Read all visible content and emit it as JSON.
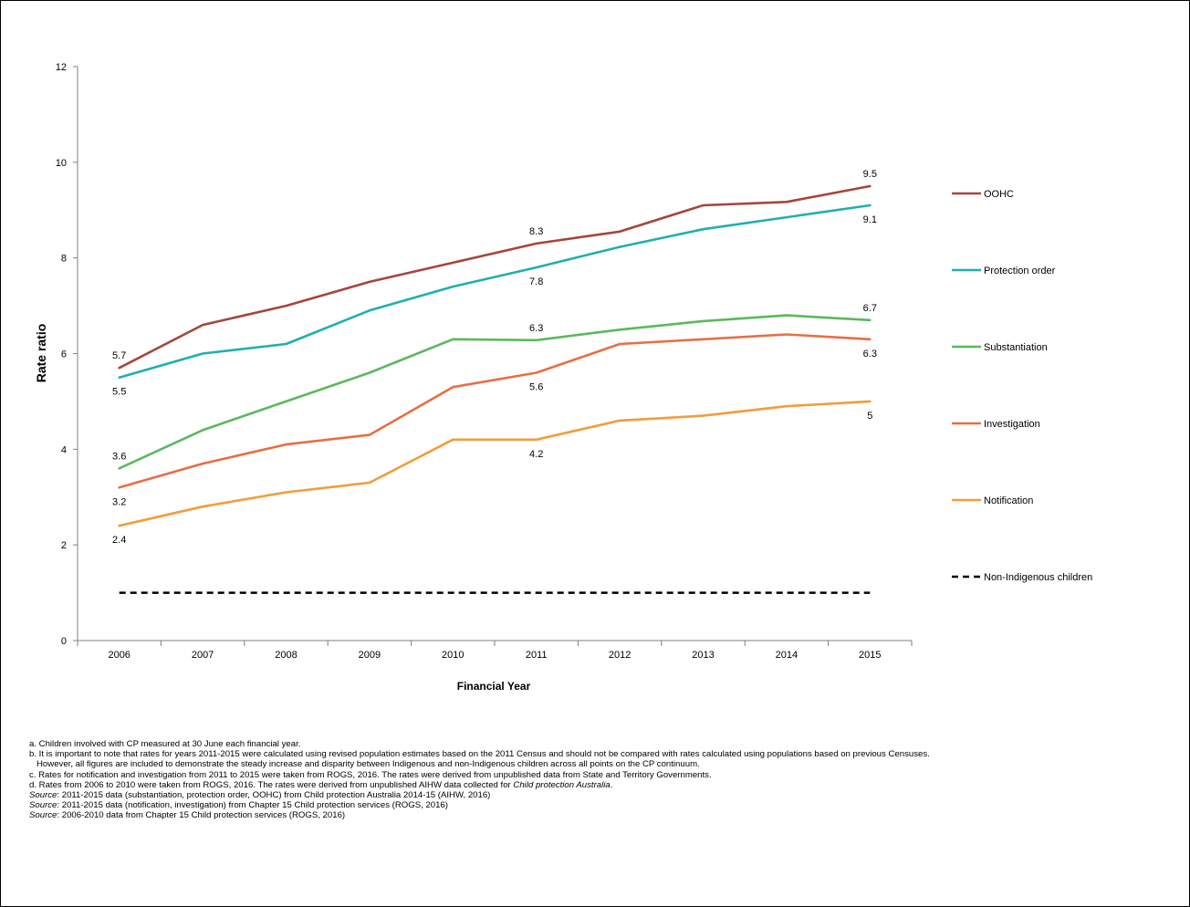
{
  "chart_data": {
    "type": "line",
    "xlabel": "Financial Year",
    "ylabel": "Rate ratio",
    "categories": [
      "2006",
      "2007",
      "2008",
      "2009",
      "2010",
      "2011",
      "2012",
      "2013",
      "2014",
      "2015"
    ],
    "ylim": [
      0,
      12
    ],
    "yticks": [
      "0",
      "2",
      "4",
      "6",
      "8",
      "10",
      "12"
    ],
    "grid": false,
    "legend_position": "right",
    "series": [
      {
        "name": "OOHC",
        "color": "#A5463A",
        "dashed": false,
        "values": [
          5.7,
          6.6,
          7.0,
          7.5,
          7.9,
          8.3,
          8.55,
          9.1,
          9.17,
          9.5
        ],
        "labels": [
          {
            "i": 0,
            "text": "5.7",
            "pos": "above"
          },
          {
            "i": 5,
            "text": "8.3",
            "pos": "above"
          },
          {
            "i": 9,
            "text": "9.5",
            "pos": "above"
          }
        ]
      },
      {
        "name": "Protection order",
        "color": "#1FAFB0",
        "dashed": false,
        "values": [
          5.5,
          6.0,
          6.2,
          6.9,
          7.4,
          7.8,
          8.23,
          8.6,
          8.85,
          9.1
        ],
        "labels": [
          {
            "i": 0,
            "text": "5.5",
            "pos": "below"
          },
          {
            "i": 5,
            "text": "7.8",
            "pos": "below"
          },
          {
            "i": 9,
            "text": "9.1",
            "pos": "below"
          }
        ]
      },
      {
        "name": "Substantiation",
        "color": "#5CB85C",
        "dashed": false,
        "values": [
          3.6,
          4.4,
          5.0,
          5.6,
          6.3,
          6.28,
          6.5,
          6.68,
          6.8,
          6.7
        ],
        "labels": [
          {
            "i": 0,
            "text": "3.6",
            "pos": "above"
          },
          {
            "i": 5,
            "text": "6.3",
            "pos": "above"
          },
          {
            "i": 9,
            "text": "6.7",
            "pos": "above"
          }
        ]
      },
      {
        "name": "Investigation",
        "color": "#E86E42",
        "dashed": false,
        "values": [
          3.2,
          3.7,
          4.1,
          4.3,
          5.3,
          5.6,
          6.2,
          6.3,
          6.4,
          6.3
        ],
        "labels": [
          {
            "i": 0,
            "text": "3.2",
            "pos": "below"
          },
          {
            "i": 5,
            "text": "5.6",
            "pos": "below"
          },
          {
            "i": 9,
            "text": "6.3",
            "pos": "below"
          }
        ]
      },
      {
        "name": "Notification",
        "color": "#F39C3A",
        "dashed": false,
        "values": [
          2.4,
          2.8,
          3.1,
          3.3,
          4.2,
          4.2,
          4.6,
          4.7,
          4.9,
          5.0
        ],
        "labels": [
          {
            "i": 0,
            "text": "2.4",
            "pos": "below"
          },
          {
            "i": 5,
            "text": "4.2",
            "pos": "below"
          },
          {
            "i": 9,
            "text": "5",
            "pos": "below"
          }
        ]
      },
      {
        "name": "Non-Indigenous children",
        "color": "#000000",
        "dashed": true,
        "values": [
          1,
          1,
          1,
          1,
          1,
          1,
          1,
          1,
          1,
          1
        ],
        "labels": []
      }
    ]
  },
  "notes": {
    "a": "a. Children involved with CP measured at 30 June each financial year.",
    "b": "b. It is important to note that rates for years 2011-2015 were calculated using revised population estimates based on the 2011 Census and should not be compared with rates calculated using populations based on previous Censuses.",
    "b2": "However, all figures are included to demonstrate the steady increase and disparity between Indigenous and non-Indigenous children across all points on the CP continuum.",
    "c": "c. Rates for notification and investigation from 2011 to 2015 were taken from ROGS, 2016. The rates were derived from unpublished data from State and Territory Governments.",
    "d_prefix": "d. Rates from 2006 to 2010 were taken from ROGS, 2016. The rates were derived from unpublished AIHW data collected for ",
    "d_italic": "Child protection Australia",
    "d_suffix": ".",
    "source_label": "Source",
    "source1": ": 2011-2015 data (substantiation, protection order, OOHC) from Child protection Australia 2014-15 (AIHW, 2016)",
    "source2": ": 2011-2015 data (notification, investigation) from Chapter 15 Child protection services (ROGS, 2016)",
    "source3": ": 2006-2010 data from Chapter 15 Child protection services (ROGS, 2016)"
  }
}
